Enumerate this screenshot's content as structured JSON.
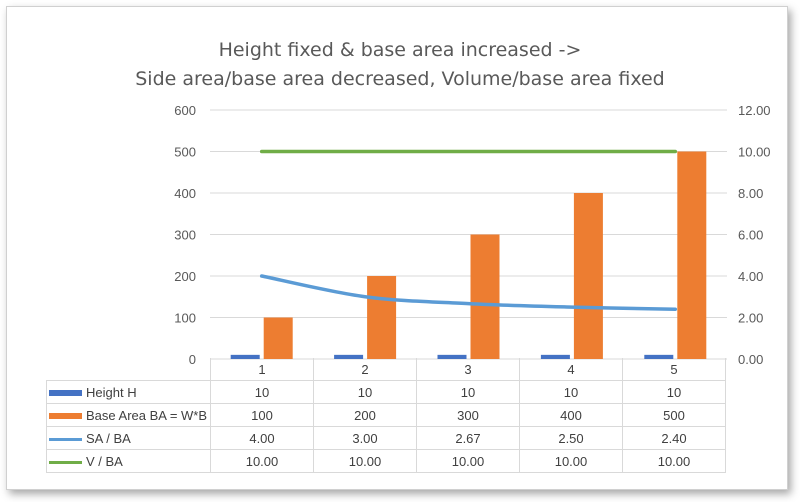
{
  "chart_data": {
    "type": "bar",
    "title": [
      "Height fixed & base area increased ->",
      "Side area/base area decreased, Volume/base area fixed"
    ],
    "categories": [
      "1",
      "2",
      "3",
      "4",
      "5"
    ],
    "series": [
      {
        "name": "Height H",
        "kind": "bar",
        "axis": "left",
        "color": "#4472c4",
        "values": [
          10,
          10,
          10,
          10,
          10
        ],
        "labels": [
          "10",
          "10",
          "10",
          "10",
          "10"
        ]
      },
      {
        "name": "Base Area BA = W*B",
        "kind": "bar",
        "axis": "left",
        "color": "#ed7d31",
        "values": [
          100,
          200,
          300,
          400,
          500
        ],
        "labels": [
          "100",
          "200",
          "300",
          "400",
          "500"
        ]
      },
      {
        "name": "SA / BA",
        "kind": "line",
        "axis": "right",
        "color": "#5b9bd5",
        "smooth": true,
        "values": [
          4.0,
          3.0,
          2.67,
          2.5,
          2.4
        ],
        "labels": [
          "4.00",
          "3.00",
          "2.67",
          "2.50",
          "2.40"
        ]
      },
      {
        "name": "V / BA",
        "kind": "line",
        "axis": "right",
        "color": "#70ad47",
        "values": [
          10.0,
          10.0,
          10.0,
          10.0,
          10.0
        ],
        "labels": [
          "10.00",
          "10.00",
          "10.00",
          "10.00",
          "10.00"
        ]
      }
    ],
    "ylim_left": [
      0,
      600
    ],
    "yticks_left": [
      "0",
      "100",
      "200",
      "300",
      "400",
      "500",
      "600"
    ],
    "ylim_right": [
      0,
      12
    ],
    "yticks_right": [
      "0.00",
      "2.00",
      "4.00",
      "6.00",
      "8.00",
      "10.00",
      "12.00"
    ],
    "grid": true,
    "legend": "data-table"
  }
}
